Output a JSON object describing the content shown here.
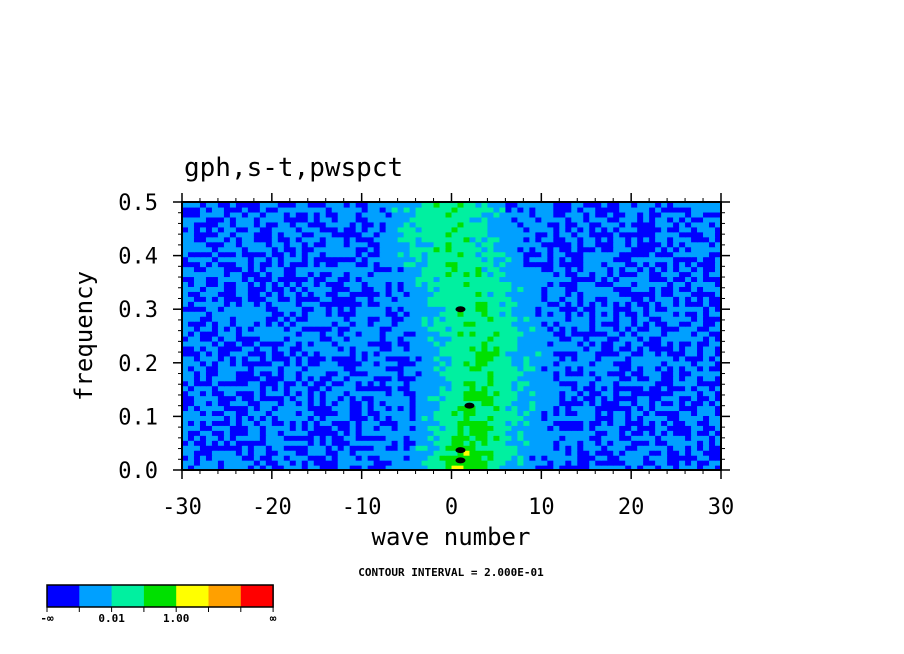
{
  "chart_data": {
    "type": "heatmap",
    "title": "gph,s-t,pwspct",
    "xlabel": "wave number",
    "ylabel": "frequency",
    "xlim": [
      -30,
      30
    ],
    "ylim": [
      0,
      0.5
    ],
    "x_ticks": [
      "-30",
      "-20",
      "-10",
      "0",
      "10",
      "20",
      "30"
    ],
    "y_ticks": [
      "0.0",
      "0.1",
      "0.2",
      "0.3",
      "0.4",
      "0.5"
    ],
    "annotation": "CONTOUR INTERVAL = 2.000E-01",
    "colorbar": {
      "colors": [
        "#0000ff",
        "#00a0ff",
        "#00f0a0",
        "#00e000",
        "#ffff00",
        "#ffa000",
        "#ff0000"
      ],
      "labels": [
        "-∞",
        "0.01",
        "1.00",
        "∞"
      ]
    },
    "peak_markers": [
      [
        1,
        0.018
      ],
      [
        1,
        0.037
      ],
      [
        2,
        0.12
      ],
      [
        1,
        0.3
      ]
    ]
  }
}
